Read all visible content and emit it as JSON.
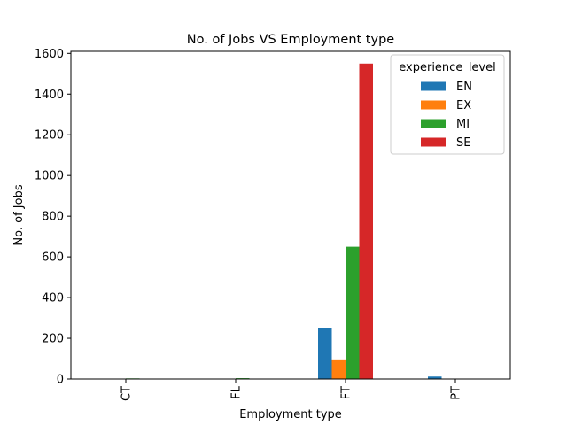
{
  "chart_data": {
    "type": "bar",
    "title": "No. of Jobs VS Employment type",
    "xlabel": "Employment type",
    "ylabel": "No. of Jobs",
    "categories": [
      "CT",
      "FL",
      "FT",
      "PT"
    ],
    "ylim": [
      0,
      1610
    ],
    "yticks": [
      0,
      200,
      400,
      600,
      800,
      1000,
      1200,
      1400,
      1600
    ],
    "legend": {
      "title": "experience_level",
      "placement": "upper right"
    },
    "grid": false,
    "series": [
      {
        "name": "EN",
        "color": "#1f77b4",
        "values": [
          0,
          0,
          252,
          12
        ]
      },
      {
        "name": "EX",
        "color": "#ff7f0e",
        "values": [
          0,
          0,
          92,
          0
        ]
      },
      {
        "name": "MI",
        "color": "#2ca02c",
        "values": [
          3,
          4,
          650,
          0
        ]
      },
      {
        "name": "SE",
        "color": "#d62728",
        "values": [
          0,
          0,
          1550,
          0
        ]
      }
    ]
  }
}
